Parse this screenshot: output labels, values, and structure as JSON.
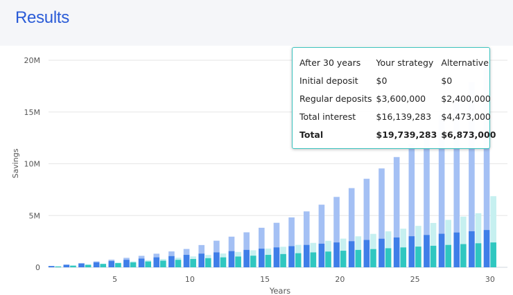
{
  "page": {
    "title": "Results"
  },
  "tooltip": {
    "headers": [
      "After 30 years",
      "Your strategy",
      "Alternative"
    ],
    "rows": [
      {
        "label": "Initial deposit",
        "strategy": "$0",
        "alternative": "$0"
      },
      {
        "label": "Regular deposits",
        "strategy": "$3,600,000",
        "alternative": "$2,400,000"
      },
      {
        "label": "Total interest",
        "strategy": "$16,139,283",
        "alternative": "$4,473,000"
      }
    ],
    "total": {
      "label": "Total",
      "strategy": "$19,739,283",
      "alternative": "$6,873,000"
    }
  },
  "chart_data": {
    "type": "bar",
    "xlabel": "Years",
    "ylabel": "Savings",
    "ylim": [
      0,
      20000000
    ],
    "yticks": [
      0,
      5000000,
      10000000,
      15000000,
      20000000
    ],
    "ytick_labels": [
      "0",
      "5M",
      "10M",
      "15M",
      "20M"
    ],
    "xticks": [
      5,
      10,
      15,
      20,
      25,
      30
    ],
    "grid": true,
    "legend": "none",
    "x": [
      1,
      2,
      3,
      4,
      5,
      6,
      7,
      8,
      9,
      10,
      11,
      12,
      13,
      14,
      15,
      16,
      17,
      18,
      19,
      20,
      21,
      22,
      23,
      24,
      25,
      26,
      27,
      28,
      29,
      30
    ],
    "series": [
      {
        "color": "#a4c0f4",
        "values": [
          128000,
          265000,
          411000,
          568000,
          736000,
          916000,
          1108000,
          1314000,
          1534000,
          1770000,
          2150000,
          2570000,
          2960000,
          3380000,
          3820000,
          4300000,
          4820000,
          5400000,
          6050000,
          6800000,
          7650000,
          8550000,
          9550000,
          10650000,
          11900000,
          13250000,
          14700000,
          16250000,
          17900000,
          19739283
        ]
      },
      {
        "color": "#3f7ee8",
        "values": [
          120000,
          240000,
          360000,
          480000,
          600000,
          720000,
          840000,
          960000,
          1080000,
          1200000,
          1320000,
          1440000,
          1560000,
          1680000,
          1800000,
          1920000,
          2040000,
          2160000,
          2280000,
          2400000,
          2520000,
          2640000,
          2760000,
          2880000,
          3000000,
          3120000,
          3240000,
          3360000,
          3480000,
          3600000
        ]
      },
      {
        "color": "#c6f0f0",
        "values": [
          84000,
          172000,
          264000,
          361000,
          463000,
          570000,
          682000,
          800000,
          924000,
          1054000,
          1191000,
          1334000,
          1485000,
          1643000,
          1809000,
          1983000,
          2166000,
          2358000,
          2560000,
          2772000,
          2994000,
          3228000,
          3473000,
          3731000,
          4001000,
          4285000,
          4583000,
          4896000,
          5224000,
          6873000
        ]
      },
      {
        "color": "#2fc7c0",
        "values": [
          80000,
          160000,
          240000,
          320000,
          400000,
          480000,
          560000,
          640000,
          720000,
          800000,
          880000,
          960000,
          1040000,
          1120000,
          1200000,
          1280000,
          1360000,
          1440000,
          1520000,
          1600000,
          1680000,
          1760000,
          1840000,
          1920000,
          2000000,
          2080000,
          2160000,
          2240000,
          2320000,
          2400000
        ]
      }
    ]
  }
}
